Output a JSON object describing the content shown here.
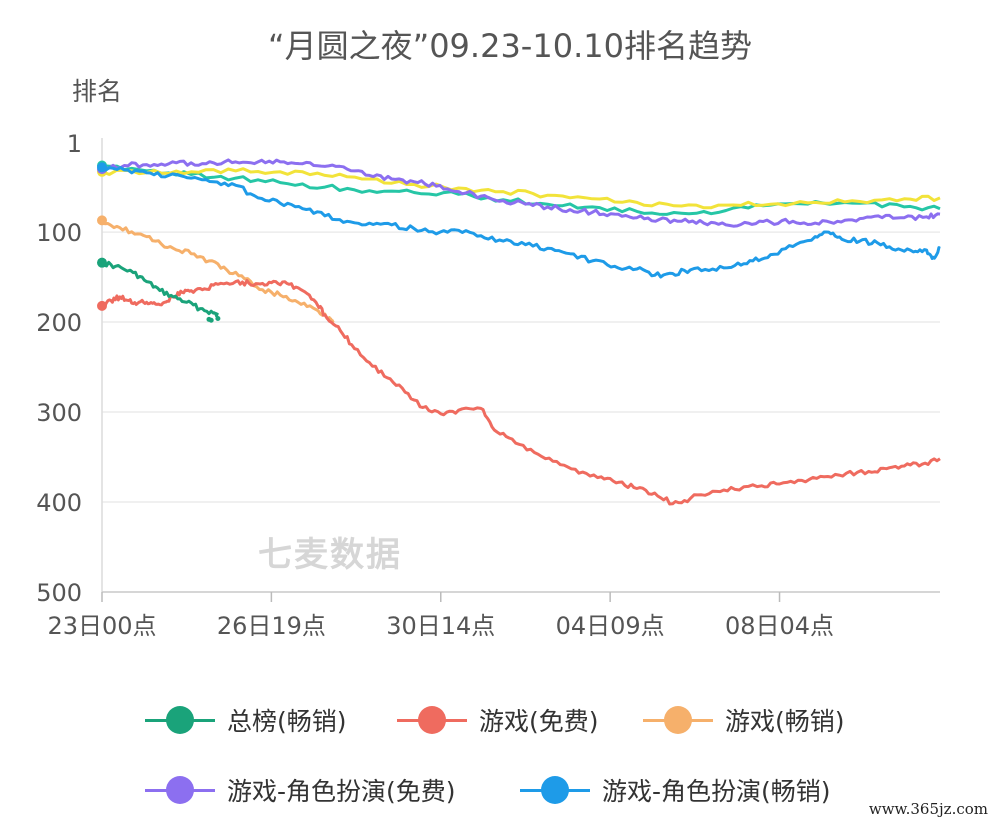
{
  "watermark": "七麦数据",
  "site_text": "www.365jz.com",
  "chart_data": {
    "type": "line",
    "title": "“月圆之夜”09.23-10.10排名趋势",
    "ylabel": "排名",
    "y_inverted": true,
    "ylim": [
      1,
      500
    ],
    "yticks": [
      1,
      100,
      200,
      300,
      400,
      500
    ],
    "xlim": [
      0,
      18.8
    ],
    "xticks": [
      {
        "x": 0,
        "label": "23日00点"
      },
      {
        "x": 3.8,
        "label": "26日19点"
      },
      {
        "x": 7.6,
        "label": "30日14点"
      },
      {
        "x": 11.4,
        "label": "04日09点"
      },
      {
        "x": 15.2,
        "label": "08日04点"
      }
    ],
    "grid": true,
    "legend_position": "bottom",
    "series": [
      {
        "name": "总榜(畅销)",
        "color": "#1aa37a",
        "points": [
          [
            0,
            134
          ],
          [
            0.3,
            138
          ],
          [
            0.7,
            145
          ],
          [
            1.0,
            155
          ],
          [
            1.3,
            165
          ],
          [
            1.6,
            172
          ],
          [
            1.9,
            178
          ],
          [
            2.2,
            185
          ],
          [
            2.5,
            190
          ],
          [
            2.6,
            192
          ]
        ],
        "extra_points": [
          [
            2.4,
            197
          ],
          [
            2.45,
            198
          ],
          [
            2.6,
            196
          ]
        ]
      },
      {
        "name": "游戏(免费)",
        "color": "#ef6b5f",
        "points": [
          [
            0,
            182
          ],
          [
            0.2,
            176
          ],
          [
            0.4,
            172
          ],
          [
            0.6,
            176
          ],
          [
            0.8,
            179
          ],
          [
            1.0,
            178
          ],
          [
            1.2,
            180
          ],
          [
            1.4,
            178
          ],
          [
            1.6,
            172
          ],
          [
            1.8,
            167
          ],
          [
            2.0,
            165
          ],
          [
            2.3,
            163
          ],
          [
            2.6,
            158
          ],
          [
            3.0,
            155
          ],
          [
            3.3,
            157
          ],
          [
            3.6,
            157
          ],
          [
            3.9,
            155
          ],
          [
            4.2,
            158
          ],
          [
            4.5,
            165
          ],
          [
            4.8,
            178
          ],
          [
            5.0,
            192
          ],
          [
            5.3,
            205
          ],
          [
            5.6,
            225
          ],
          [
            6.0,
            245
          ],
          [
            6.4,
            262
          ],
          [
            6.8,
            278
          ],
          [
            7.2,
            295
          ],
          [
            7.6,
            302
          ],
          [
            8.0,
            298
          ],
          [
            8.5,
            296
          ],
          [
            8.8,
            320
          ],
          [
            9.2,
            330
          ],
          [
            9.7,
            345
          ],
          [
            10.2,
            355
          ],
          [
            10.7,
            368
          ],
          [
            11.2,
            372
          ],
          [
            11.6,
            378
          ],
          [
            12.0,
            385
          ],
          [
            12.4,
            390
          ],
          [
            12.8,
            402
          ],
          [
            13.2,
            396
          ],
          [
            13.7,
            388
          ],
          [
            14.2,
            386
          ],
          [
            14.8,
            382
          ],
          [
            15.2,
            380
          ],
          [
            15.7,
            376
          ],
          [
            16.2,
            372
          ],
          [
            16.7,
            368
          ],
          [
            17.2,
            366
          ],
          [
            17.6,
            363
          ],
          [
            18.0,
            360
          ],
          [
            18.4,
            358
          ],
          [
            18.8,
            352
          ]
        ]
      },
      {
        "name": "游戏(畅销)",
        "color": "#f6b06b",
        "points": [
          [
            0,
            87
          ],
          [
            0.4,
            95
          ],
          [
            0.8,
            102
          ],
          [
            1.2,
            110
          ],
          [
            1.6,
            118
          ],
          [
            2.0,
            124
          ],
          [
            2.4,
            132
          ],
          [
            2.8,
            142
          ],
          [
            3.2,
            152
          ],
          [
            3.6,
            164
          ],
          [
            4.0,
            170
          ],
          [
            4.4,
            178
          ],
          [
            4.8,
            186
          ],
          [
            5.1,
            195
          ],
          [
            5.2,
            198
          ]
        ]
      },
      {
        "name": "游戏-角色扮演(免费)",
        "color": "#8c6ff0",
        "points": [
          [
            0,
            30
          ],
          [
            0.5,
            26
          ],
          [
            1.0,
            25
          ],
          [
            1.5,
            24
          ],
          [
            2.0,
            23
          ],
          [
            2.5,
            23
          ],
          [
            3.0,
            22
          ],
          [
            3.5,
            22
          ],
          [
            4.0,
            22
          ],
          [
            4.5,
            24
          ],
          [
            5.0,
            27
          ],
          [
            5.5,
            30
          ],
          [
            6.0,
            37
          ],
          [
            6.5,
            41
          ],
          [
            7.0,
            44
          ],
          [
            7.5,
            49
          ],
          [
            8.0,
            55
          ],
          [
            8.5,
            60
          ],
          [
            9.0,
            65
          ],
          [
            9.5,
            69
          ],
          [
            10.0,
            72
          ],
          [
            10.5,
            75
          ],
          [
            11.0,
            78
          ],
          [
            11.5,
            80
          ],
          [
            12.0,
            84
          ],
          [
            12.5,
            86
          ],
          [
            13.0,
            88
          ],
          [
            13.5,
            90
          ],
          [
            14.0,
            92
          ],
          [
            14.5,
            90
          ],
          [
            15.0,
            89
          ],
          [
            15.5,
            88
          ],
          [
            16.0,
            90
          ],
          [
            16.5,
            88
          ],
          [
            17.0,
            85
          ],
          [
            17.5,
            84
          ],
          [
            18.0,
            84
          ],
          [
            18.5,
            83
          ],
          [
            18.8,
            80
          ]
        ]
      },
      {
        "name": "游戏-角色扮演(畅销)",
        "color": "#1e9be8",
        "points": [
          [
            0,
            28
          ],
          [
            0.5,
            31
          ],
          [
            1.0,
            34
          ],
          [
            1.5,
            37
          ],
          [
            2.0,
            40
          ],
          [
            2.5,
            44
          ],
          [
            3.0,
            48
          ],
          [
            3.5,
            62
          ],
          [
            4.0,
            68
          ],
          [
            4.5,
            74
          ],
          [
            5.0,
            82
          ],
          [
            5.5,
            88
          ],
          [
            6.0,
            90
          ],
          [
            6.5,
            92
          ],
          [
            7.0,
            96
          ],
          [
            7.5,
            102
          ],
          [
            8.0,
            98
          ],
          [
            8.5,
            104
          ],
          [
            9.0,
            110
          ],
          [
            9.5,
            114
          ],
          [
            10.0,
            118
          ],
          [
            10.5,
            124
          ],
          [
            11.0,
            132
          ],
          [
            11.5,
            138
          ],
          [
            12.0,
            141
          ],
          [
            12.4,
            148
          ],
          [
            12.8,
            146
          ],
          [
            13.2,
            142
          ],
          [
            13.7,
            141
          ],
          [
            14.2,
            137
          ],
          [
            14.6,
            132
          ],
          [
            15.0,
            125
          ],
          [
            15.5,
            116
          ],
          [
            16.0,
            105
          ],
          [
            16.3,
            100
          ],
          [
            16.6,
            108
          ],
          [
            17.0,
            110
          ],
          [
            17.4,
            112
          ],
          [
            17.8,
            120
          ],
          [
            18.2,
            122
          ],
          [
            18.5,
            120
          ],
          [
            18.65,
            128
          ],
          [
            18.8,
            118
          ]
        ]
      },
      {
        "name": "",
        "color": "#26c6a6",
        "points": [
          [
            0,
            26
          ],
          [
            1,
            32
          ],
          [
            2,
            36
          ],
          [
            3,
            40
          ],
          [
            4,
            45
          ],
          [
            5,
            50
          ],
          [
            6,
            54
          ],
          [
            7,
            56
          ],
          [
            8,
            58
          ],
          [
            9,
            64
          ],
          [
            10,
            69
          ],
          [
            11,
            72
          ],
          [
            12,
            77
          ],
          [
            13,
            79
          ],
          [
            14,
            76
          ],
          [
            15,
            70
          ],
          [
            16,
            66
          ],
          [
            17,
            68
          ],
          [
            18,
            72
          ],
          [
            18.8,
            74
          ]
        ]
      },
      {
        "name": "",
        "color": "#f2e33a",
        "points": [
          [
            0,
            33
          ],
          [
            1,
            34
          ],
          [
            2,
            33
          ],
          [
            3,
            32
          ],
          [
            4,
            33
          ],
          [
            5,
            37
          ],
          [
            6,
            41
          ],
          [
            7,
            47
          ],
          [
            8,
            51
          ],
          [
            9,
            55
          ],
          [
            10,
            59
          ],
          [
            11,
            63
          ],
          [
            12,
            67
          ],
          [
            13,
            71
          ],
          [
            14,
            70
          ],
          [
            15,
            69
          ],
          [
            16,
            67
          ],
          [
            17,
            66
          ],
          [
            18,
            63
          ],
          [
            18.8,
            62
          ]
        ]
      }
    ]
  }
}
